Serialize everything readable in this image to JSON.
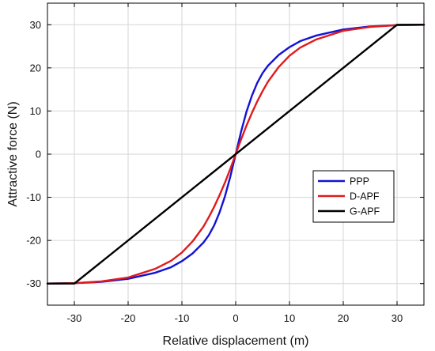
{
  "chart_data": {
    "type": "line",
    "xlabel": "Relative displacement (m)",
    "ylabel": "Attractive force (N)",
    "xlim": [
      -35,
      35
    ],
    "ylim": [
      -35,
      35
    ],
    "xticks": [
      -30,
      -20,
      -10,
      0,
      10,
      20,
      30
    ],
    "yticks": [
      -30,
      -20,
      -10,
      0,
      10,
      20,
      30
    ],
    "grid": true,
    "legend_position": "right",
    "series": [
      {
        "name": "PPP",
        "color": "#1212d6",
        "x": [
          -35,
          -30,
          -25,
          -20,
          -15,
          -12,
          -10,
          -8,
          -6,
          -5,
          -4,
          -3,
          -2,
          -1,
          0,
          1,
          2,
          3,
          4,
          5,
          6,
          8,
          10,
          12,
          15,
          20,
          25,
          30,
          35
        ],
        "y": [
          -30,
          -29.9,
          -29.6,
          -28.9,
          -27.5,
          -26.2,
          -24.8,
          -23.0,
          -20.5,
          -18.8,
          -16.5,
          -13.5,
          -9.8,
          -5.2,
          0,
          5.2,
          9.8,
          13.5,
          16.5,
          18.8,
          20.5,
          23.0,
          24.8,
          26.2,
          27.5,
          28.9,
          29.6,
          29.9,
          30
        ]
      },
      {
        "name": "D-APF",
        "color": "#e01b1b",
        "x": [
          -35,
          -30,
          -25,
          -20,
          -15,
          -12,
          -10,
          -8,
          -6,
          -5,
          -4,
          -3,
          -2,
          -1,
          0,
          1,
          2,
          3,
          4,
          5,
          6,
          8,
          10,
          12,
          15,
          20,
          25,
          30,
          35
        ],
        "y": [
          -30,
          -29.9,
          -29.5,
          -28.6,
          -26.6,
          -24.7,
          -22.8,
          -20.2,
          -16.8,
          -14.6,
          -12.2,
          -9.5,
          -6.6,
          -3.4,
          0,
          3.4,
          6.6,
          9.5,
          12.2,
          14.6,
          16.8,
          20.2,
          22.8,
          24.7,
          26.6,
          28.6,
          29.5,
          29.9,
          30
        ]
      },
      {
        "name": "G-APF",
        "color": "#000000",
        "x": [
          -35,
          -30,
          30,
          35
        ],
        "y": [
          -30,
          -30,
          30,
          30
        ]
      }
    ]
  }
}
